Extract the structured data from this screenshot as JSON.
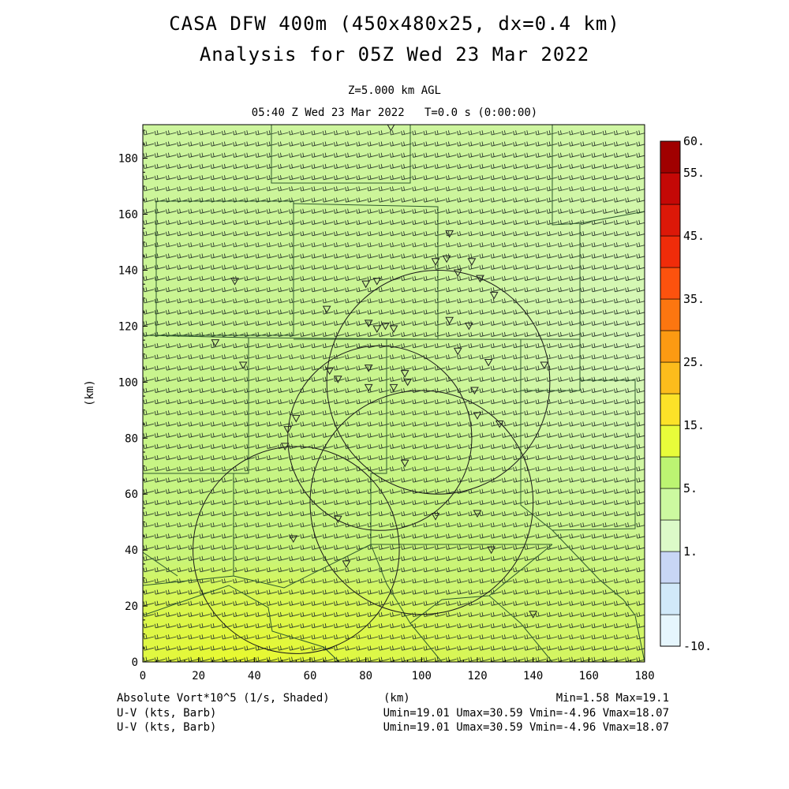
{
  "title": "CASA DFW 400m (450x480x25, dx=0.4 km)",
  "subtitle": "Analysis for 05Z Wed 23 Mar 2022",
  "level_label": "Z=5.000 km AGL",
  "time_label": "05:40 Z Wed 23 Mar 2022",
  "elapsed_label": "T=0.0 s (0:00:00)",
  "chart_data": {
    "type": "heatmap",
    "field": "Absolute Vort*10^5 (1/s, Shaded)",
    "overlays": [
      "U-V (kts, Barb)",
      "U-V (kts, Barb)"
    ],
    "xlabel": "(km)",
    "ylabel": "(km)",
    "xlim": [
      0,
      180
    ],
    "ylim": [
      0,
      192
    ],
    "x_ticks": [
      0,
      20,
      40,
      60,
      80,
      100,
      120,
      140,
      160,
      180
    ],
    "y_ticks": [
      0,
      20,
      40,
      60,
      80,
      100,
      120,
      140,
      160,
      180
    ],
    "colorbar_levels": [
      -10,
      -5,
      1,
      3,
      5,
      10,
      15,
      20,
      25,
      30,
      35,
      40,
      45,
      50,
      55,
      60
    ],
    "colorbar_labels": [
      "60.",
      "55.",
      "45.",
      "35.",
      "25.",
      "15.",
      "5.",
      "1.",
      "-10."
    ],
    "colorbar_colors": [
      "#e6f6fd",
      "#d1e9f9",
      "#c8d6f5",
      "#dcfac8",
      "#ccf9a0",
      "#bcf472",
      "#e8fc3a",
      "#fce228",
      "#fcbc1c",
      "#fc9a12",
      "#fc7610",
      "#fc520e",
      "#f02c0a",
      "#dc1808",
      "#c40806",
      "#a00000"
    ],
    "radar_circles_km": [
      {
        "cx": 106,
        "cy": 100,
        "r": 40
      },
      {
        "cx": 85,
        "cy": 80,
        "r": 33
      },
      {
        "cx": 100,
        "cy": 57,
        "r": 40
      },
      {
        "cx": 55,
        "cy": 40,
        "r": 37
      }
    ],
    "stations_km": [
      [
        89,
        191
      ],
      [
        110,
        153
      ],
      [
        118,
        143
      ],
      [
        109,
        144
      ],
      [
        105,
        143
      ],
      [
        113,
        139
      ],
      [
        121,
        137
      ],
      [
        126,
        131
      ],
      [
        80,
        135
      ],
      [
        84,
        136
      ],
      [
        33,
        136
      ],
      [
        66,
        126
      ],
      [
        81,
        121
      ],
      [
        87,
        120
      ],
      [
        84,
        119
      ],
      [
        90,
        119
      ],
      [
        110,
        122
      ],
      [
        117,
        120
      ],
      [
        113,
        111
      ],
      [
        26,
        114
      ],
      [
        36,
        106
      ],
      [
        67,
        104
      ],
      [
        70,
        101
      ],
      [
        81,
        105
      ],
      [
        94,
        103
      ],
      [
        95,
        100
      ],
      [
        90,
        98
      ],
      [
        81,
        98
      ],
      [
        119,
        97
      ],
      [
        120,
        88
      ],
      [
        128,
        85
      ],
      [
        124,
        107
      ],
      [
        144,
        106
      ],
      [
        55,
        87
      ],
      [
        52,
        83
      ],
      [
        51,
        77
      ],
      [
        94,
        71
      ],
      [
        120,
        53
      ],
      [
        105,
        52
      ],
      [
        70,
        51
      ],
      [
        54,
        44
      ],
      [
        125,
        40
      ],
      [
        73,
        35
      ],
      [
        140,
        17
      ]
    ],
    "stats": {
      "min": 1.58,
      "max": 19.1,
      "umin": 19.01,
      "umax": 30.59,
      "vmin": -4.96,
      "vmax": 18.07
    }
  },
  "footer": {
    "field_label": "Absolute Vort*10^5 (1/s, Shaded)",
    "x_unit": "(km)",
    "minmax": "Min=1.58 Max=19.1",
    "barb1_label": "U-V (kts, Barb)",
    "barb1_stats": "Umin=19.01 Umax=30.59 Vmin=-4.96 Vmax=18.07",
    "barb2_label": "U-V (kts, Barb)",
    "barb2_stats": "Umin=19.01 Umax=30.59 Vmin=-4.96 Vmax=18.07"
  }
}
